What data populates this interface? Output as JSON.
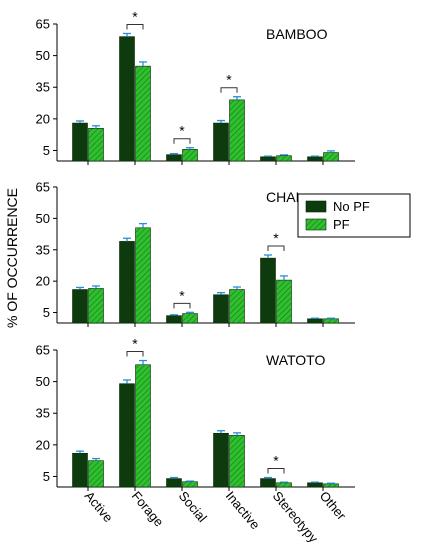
{
  "colors": {
    "no_pf": "#0e3b0e",
    "pf": "#2fbf2f",
    "error_bar": "#2a8fd6",
    "axis": "#000000"
  },
  "ylabel": "% OF OCCURRENCE",
  "chart_data": [
    {
      "type": "bar",
      "title": "BAMBOO",
      "categories": [
        "Active",
        "Forage",
        "Social",
        "Inactive",
        "Stereotypy",
        "Other"
      ],
      "ylim": [
        0,
        65
      ],
      "yticks": [
        5,
        20,
        35,
        50,
        65
      ],
      "series": [
        {
          "name": "No PF",
          "values": [
            18,
            59,
            3,
            18,
            2,
            2
          ],
          "errors": [
            1,
            1.5,
            0.5,
            1.2,
            0.3,
            0.3
          ]
        },
        {
          "name": "PF",
          "values": [
            15.5,
            45,
            5.5,
            29,
            2.5,
            4
          ],
          "errors": [
            1.2,
            2,
            0.8,
            1.5,
            0.4,
            0.8
          ]
        }
      ],
      "significance": [
        {
          "category": "Forage",
          "label": "*"
        },
        {
          "category": "Social",
          "label": "*"
        },
        {
          "category": "Inactive",
          "label": "*"
        }
      ]
    },
    {
      "type": "bar",
      "title": "CHAI",
      "categories": [
        "Active",
        "Forage",
        "Social",
        "Inactive",
        "Stereotypy",
        "Other"
      ],
      "ylim": [
        0,
        65
      ],
      "yticks": [
        5,
        20,
        35,
        50,
        65
      ],
      "series": [
        {
          "name": "No PF",
          "values": [
            16,
            39,
            3.5,
            13.5,
            31,
            2
          ],
          "errors": [
            1,
            1.5,
            0.4,
            1,
            1.5,
            0.3
          ]
        },
        {
          "name": "PF",
          "values": [
            16.5,
            45.5,
            4.5,
            16,
            20.5,
            2
          ],
          "errors": [
            1.2,
            2,
            0.6,
            1.2,
            2,
            0.3
          ]
        }
      ],
      "significance": [
        {
          "category": "Social",
          "label": "*"
        },
        {
          "category": "Stereotypy",
          "label": "*"
        }
      ],
      "legend": {
        "placement": "top-right",
        "entries": [
          "No PF",
          "PF"
        ]
      }
    },
    {
      "type": "bar",
      "title": "WATOTO",
      "categories": [
        "Active",
        "Forage",
        "Social",
        "Inactive",
        "Stereotypy",
        "Other"
      ],
      "ylim": [
        0,
        65
      ],
      "yticks": [
        5,
        20,
        35,
        50,
        65
      ],
      "series": [
        {
          "name": "No PF",
          "values": [
            16,
            49,
            4,
            25.5,
            4,
            2
          ],
          "errors": [
            1,
            1.8,
            0.5,
            1.2,
            0.5,
            0.3
          ]
        },
        {
          "name": "PF",
          "values": [
            12.5,
            58,
            2.5,
            24.5,
            2,
            1.5
          ],
          "errors": [
            1,
            2,
            0.3,
            1.2,
            0.3,
            0.3
          ]
        }
      ],
      "significance": [
        {
          "category": "Forage",
          "label": "*"
        },
        {
          "category": "Stereotypy",
          "label": "*"
        }
      ]
    }
  ]
}
